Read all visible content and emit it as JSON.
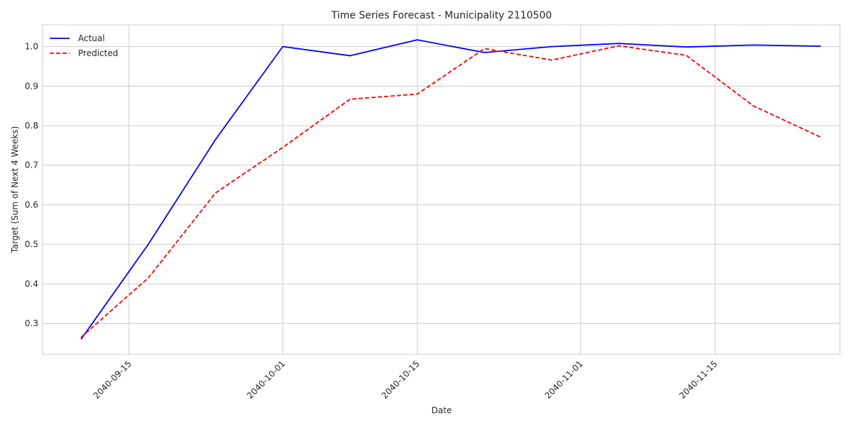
{
  "chart_data": {
    "type": "line",
    "title": "Time Series Forecast - Municipality 2110500",
    "xlabel": "Date",
    "ylabel": "Target (Sum of Next 4 Weeks)",
    "x": [
      "2040-09-10",
      "2040-09-17",
      "2040-09-24",
      "2040-10-01",
      "2040-10-08",
      "2040-10-15",
      "2040-10-22",
      "2040-10-29",
      "2040-11-05",
      "2040-11-12",
      "2040-11-19",
      "2040-11-26"
    ],
    "series": [
      {
        "name": "Actual",
        "color": "#0000ff",
        "dash": "solid",
        "values": [
          0.26,
          0.5,
          0.765,
          1.0,
          0.977,
          1.017,
          0.985,
          1.0,
          1.008,
          0.999,
          1.004,
          1.001
        ]
      },
      {
        "name": "Predicted",
        "color": "#ff0000",
        "dash": "dashed",
        "values": [
          0.265,
          0.415,
          0.63,
          0.745,
          0.867,
          0.88,
          0.995,
          0.966,
          1.002,
          0.978,
          0.85,
          0.771
        ]
      }
    ],
    "xticks": [
      "2040-09-15",
      "2040-10-01",
      "2040-10-15",
      "2040-11-01",
      "2040-11-15"
    ],
    "yticks": [
      0.3,
      0.4,
      0.5,
      0.6,
      0.7,
      0.8,
      0.9,
      1.0
    ],
    "ytick_labels": [
      "0.3",
      "0.4",
      "0.5",
      "0.6",
      "0.7",
      "0.8",
      "0.9",
      "1.0"
    ],
    "xlim": [
      "2040-09-06",
      "2040-11-28"
    ],
    "ylim": [
      0.222,
      1.055
    ],
    "grid": true,
    "legend_position": "top-left"
  }
}
